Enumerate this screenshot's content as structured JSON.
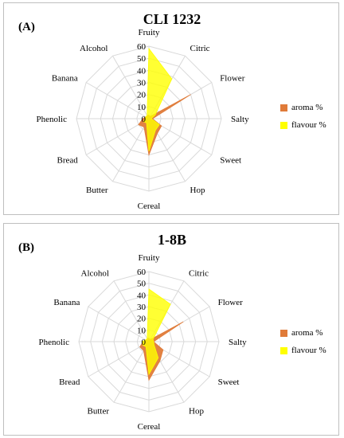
{
  "colors": {
    "aroma": "#e07b39",
    "flavour": "#ffff00",
    "grid": "#d9d9d9"
  },
  "legend": {
    "aroma": "aroma %",
    "flavour": "flavour %"
  },
  "chart_data": [
    {
      "type": "radar",
      "panel": "(A)",
      "title": "CLI 1232",
      "categories": [
        "Fruity",
        "Citric",
        "Flower",
        "Salty",
        "Sweet",
        "Hop",
        "Cereal",
        "Butter",
        "Bread",
        "Phenolic",
        "Banana",
        "Alcohol"
      ],
      "ticks": [
        0,
        10,
        20,
        30,
        40,
        50,
        60
      ],
      "range": [
        0,
        60
      ],
      "series": [
        {
          "name": "aroma %",
          "values": [
            3,
            2,
            40,
            3,
            12,
            14,
            30,
            8,
            10,
            5,
            3,
            3
          ]
        },
        {
          "name": "flavour %",
          "values": [
            58,
            38,
            6,
            2,
            10,
            11,
            27,
            4,
            5,
            3,
            3,
            3
          ]
        }
      ]
    },
    {
      "type": "radar",
      "panel": "(B)",
      "title": "1-8B",
      "categories": [
        "Fruity",
        "Citric",
        "Flower",
        "Salty",
        "Sweet",
        "Hop",
        "Cereal",
        "Butter",
        "Bread",
        "Phenolic",
        "Banana",
        "Alcohol"
      ],
      "ticks": [
        0,
        10,
        20,
        30,
        40,
        50,
        60
      ],
      "range": [
        0,
        60
      ],
      "series": [
        {
          "name": "aroma %",
          "values": [
            3,
            2,
            34,
            4,
            14,
            19,
            33,
            9,
            9,
            5,
            3,
            3
          ]
        },
        {
          "name": "flavour %",
          "values": [
            45,
            37,
            4,
            4,
            5,
            16,
            28,
            5,
            6,
            6,
            3,
            3
          ]
        }
      ]
    }
  ]
}
